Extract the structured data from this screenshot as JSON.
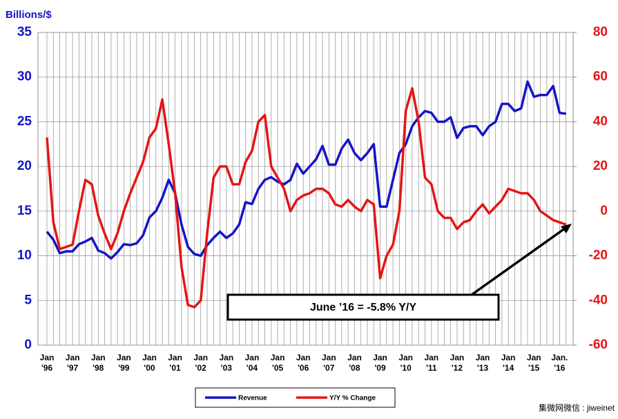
{
  "chart_data": {
    "type": "line",
    "y_label": "Billions/$",
    "annotation": "June ’16 = -5.8% Y/Y",
    "source_note": "集微网微信 : jiweinet",
    "categories": [
      "Jan\n'96",
      null,
      null,
      null,
      "Jan\n'97",
      null,
      null,
      null,
      "Jan\n'98",
      null,
      null,
      null,
      "Jan\n'99",
      null,
      null,
      null,
      "Jan\n'00",
      null,
      null,
      null,
      "Jan\n'01",
      null,
      null,
      null,
      "Jan\n'02",
      null,
      null,
      null,
      "Jan\n'03",
      null,
      null,
      null,
      "Jan\n'04",
      null,
      null,
      null,
      "Jan\n'05",
      null,
      null,
      null,
      "Jan\n'06",
      null,
      null,
      null,
      "Jan\n'07",
      null,
      null,
      null,
      "Jan\n'08",
      null,
      null,
      null,
      "Jan\n'09",
      null,
      null,
      null,
      "Jan\n'10",
      null,
      null,
      null,
      "Jan\n'11",
      null,
      null,
      null,
      "Jan\n'12",
      null,
      null,
      null,
      "Jan\n'13",
      null,
      null,
      null,
      "Jan\n'14",
      null,
      null,
      null,
      "Jan\n'15",
      null,
      null,
      null,
      "Jan.\n'16",
      null
    ],
    "series": [
      {
        "name": "Revenue",
        "color": "#1414c8",
        "axis": "y",
        "values": [
          12.7,
          11.8,
          10.3,
          10.5,
          10.5,
          11.3,
          11.6,
          12.0,
          10.6,
          10.3,
          9.7,
          10.4,
          11.3,
          11.2,
          11.4,
          12.3,
          14.3,
          15.0,
          16.5,
          18.5,
          17.0,
          13.5,
          11.0,
          10.2,
          10.0,
          11.2,
          12.0,
          12.7,
          12.0,
          12.5,
          13.5,
          16.0,
          15.8,
          17.5,
          18.5,
          18.8,
          18.3,
          18.0,
          18.5,
          20.3,
          19.2,
          20.0,
          20.8,
          22.3,
          20.2,
          20.2,
          22.0,
          23.0,
          21.5,
          20.7,
          21.5,
          22.5,
          15.5,
          15.5,
          18.5,
          21.5,
          22.5,
          24.5,
          25.5,
          26.2,
          26.0,
          25.0,
          25.0,
          25.5,
          23.2,
          24.3,
          24.5,
          24.5,
          23.5,
          24.5,
          25.0,
          27.0,
          27.0,
          26.2,
          26.5,
          29.5,
          27.8,
          28.0,
          28.0,
          29.0,
          26.0,
          25.9
        ]
      },
      {
        "name": "Y/Y % Change",
        "color": "#e61414",
        "axis": "y2",
        "values": [
          33,
          -5,
          -17,
          -16,
          -15,
          0,
          14,
          12,
          -2,
          -10,
          -17,
          -10,
          0,
          8,
          15,
          22,
          33,
          37,
          50,
          30,
          8,
          -25,
          -42,
          -43,
          -40,
          -10,
          15,
          20,
          20,
          12,
          12,
          22,
          27,
          40,
          43,
          20,
          15,
          10,
          0,
          5,
          7,
          8,
          10,
          10,
          8,
          3,
          2,
          5,
          2,
          0,
          5,
          3,
          -30,
          -20,
          -15,
          0,
          45,
          55,
          40,
          15,
          12,
          0,
          -3,
          -3,
          -8,
          -5,
          -4,
          0,
          3,
          -1,
          2,
          5,
          10,
          9,
          8,
          8,
          5,
          0,
          -2,
          -4,
          -5,
          -6
        ]
      }
    ],
    "ylim": [
      0,
      35
    ],
    "yticks": [
      0,
      5,
      10,
      15,
      20,
      25,
      30,
      35
    ],
    "y2lim": [
      -60,
      80
    ],
    "y2ticks": [
      -60,
      -40,
      -20,
      0,
      20,
      40,
      60,
      80
    ],
    "grid": true,
    "legend": "bottom"
  }
}
